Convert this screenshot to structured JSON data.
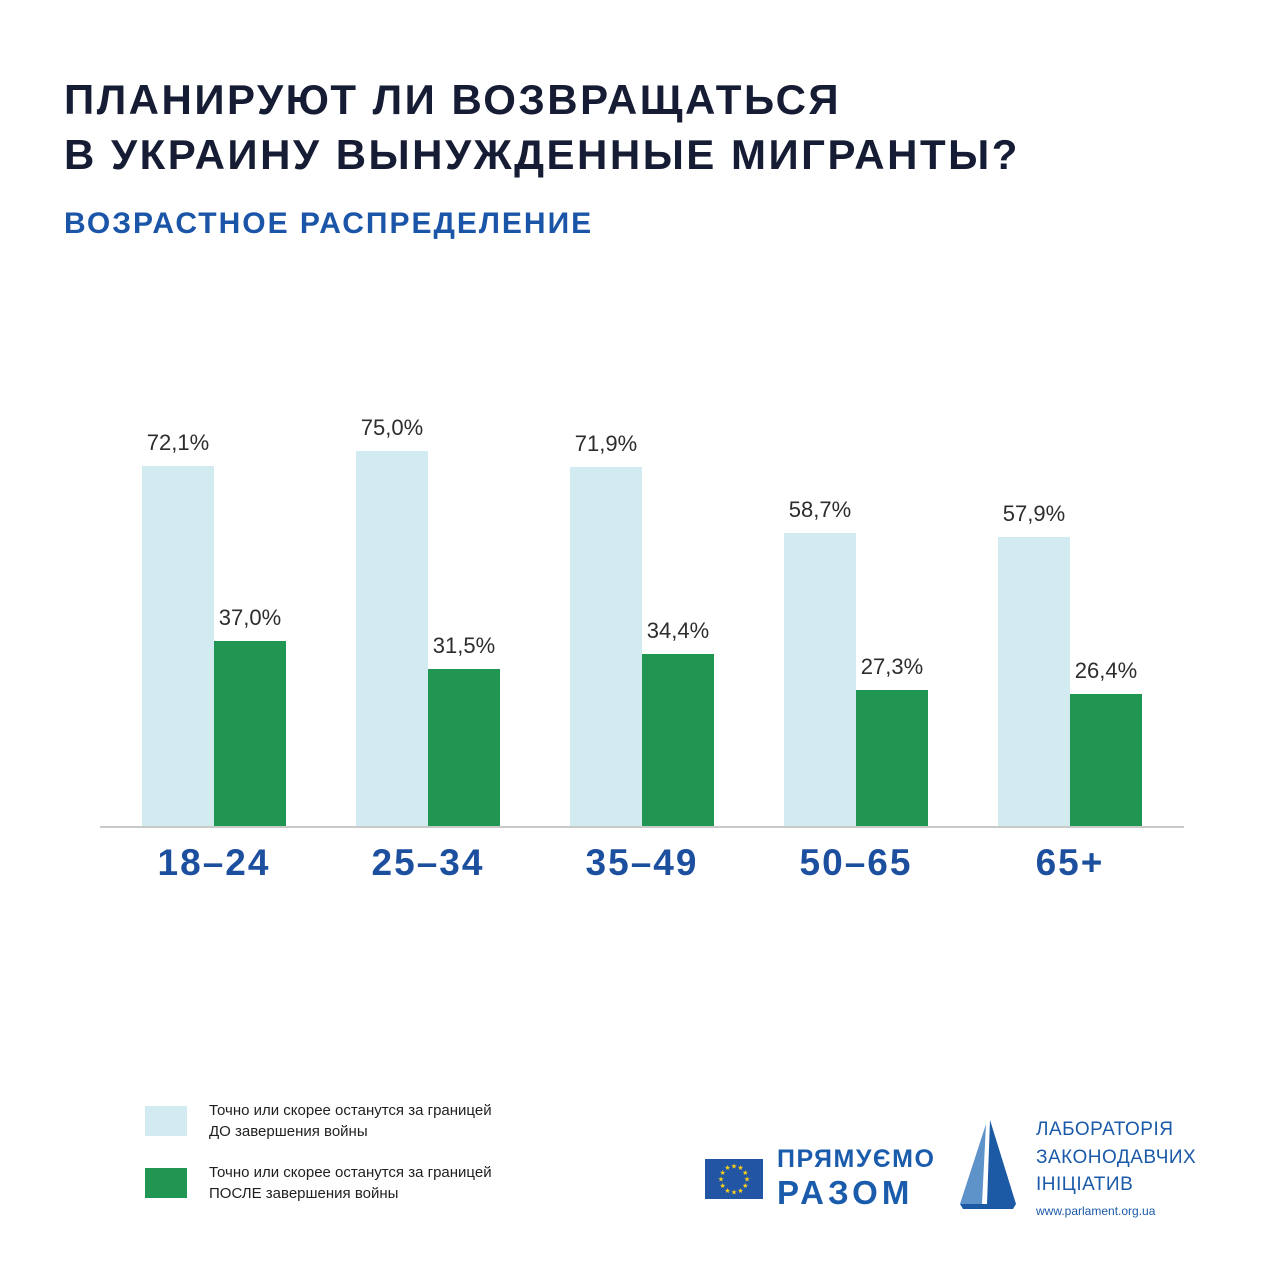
{
  "header": {
    "title_line1": "ПЛАНИРУЮТ ЛИ ВОЗВРАЩАТЬСЯ",
    "title_line2": "В УКРАИНУ ВЫНУЖДЕННЫЕ МИГРАНТЫ?",
    "subtitle": "ВОЗРАСТНОЕ РАСПРЕДЕЛЕНИЕ"
  },
  "chart_data": {
    "type": "bar",
    "title": "Планируют ли возвращаться в Украину вынужденные мигранты?",
    "subtitle": "Возрастное распределение",
    "categories": [
      "18–24",
      "25–34",
      "35–49",
      "50–65",
      "65+"
    ],
    "series": [
      {
        "name": "Точно или скорее останутся за границей ДО завершения войны",
        "values": [
          72.1,
          75.0,
          71.9,
          58.7,
          57.9
        ],
        "labels": [
          "72,1%",
          "75,0%",
          "71,9%",
          "58,7%",
          "57,9%"
        ],
        "color": "#d2ebf0"
      },
      {
        "name": "Точно или скорее останутся за границей ПОСЛЕ завершения войны",
        "values": [
          37.0,
          31.5,
          34.4,
          27.3,
          26.4
        ],
        "labels": [
          "37,0%",
          "31,5%",
          "34,4%",
          "27,3%",
          "26,4%"
        ],
        "color": "#219653"
      }
    ],
    "ylim": [
      0,
      80
    ],
    "grid": false,
    "legend_position": "bottom-left"
  },
  "legend": {
    "items": [
      {
        "line1": "Точно или скорее останутся за границей",
        "line2": "ДО завершения войны",
        "color": "#d2ebf0"
      },
      {
        "line1": "Точно или скорее останутся за границей",
        "line2": "ПОСЛЕ завершения войны",
        "color": "#219653"
      }
    ]
  },
  "footer": {
    "eu_logo": {
      "line1": "ПРЯМУЄМО",
      "line2": "РАЗОМ"
    },
    "lab_logo": {
      "line1": "ЛАБОРАТОРІЯ",
      "line2": "ЗАКОНОДАВЧИХ",
      "line3": "ІНІЦІАТИВ",
      "url": "www.parlament.org.ua"
    }
  },
  "colors": {
    "title": "#151c33",
    "subtitle": "#1b55a8",
    "axis_label": "#1d4f9f",
    "bar_light": "#d2ebf0",
    "bar_green": "#219653",
    "value_text": "#2d2d2d",
    "eu_flag_blue": "#2255a4",
    "eu_star_yellow": "#fcd116"
  }
}
